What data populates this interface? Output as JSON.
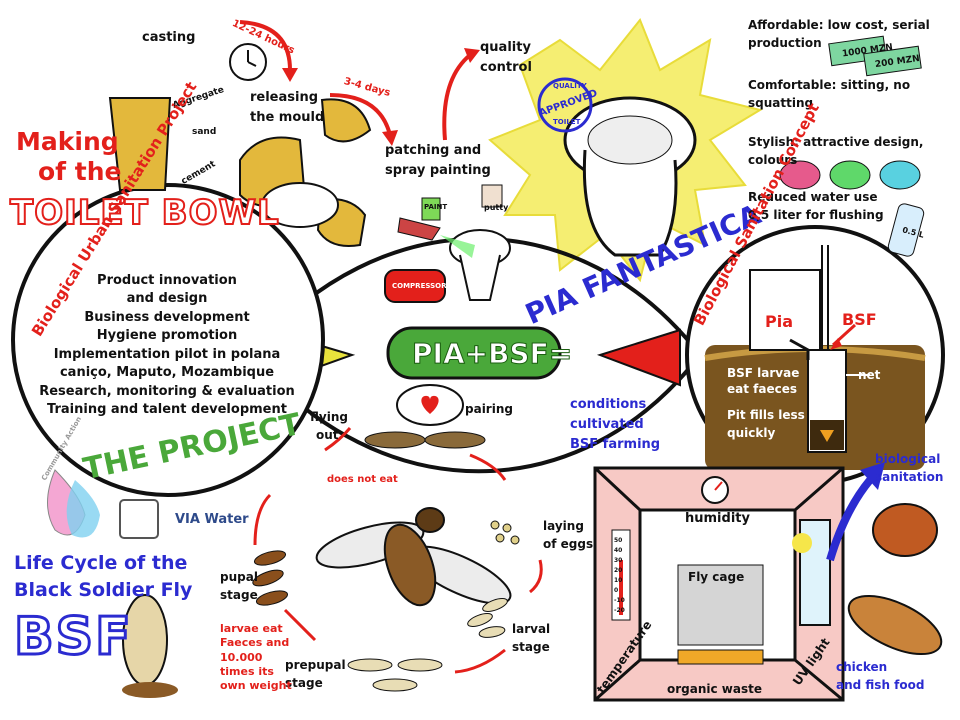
{
  "making": {
    "line1": "Making",
    "line2": "of the",
    "toilet_bowl": "TOILET BOWL"
  },
  "process": {
    "casting": "casting",
    "hours": "12-24 hours",
    "aggregate": "Aggregate",
    "sand": "sand",
    "cement": "cement",
    "releasing": "releasing",
    "the_mould": "the mould",
    "days": "3-4 days",
    "patching": "patching and",
    "spray": "spray painting",
    "paint": "PAINT",
    "putty": "putty",
    "compressor": "COMPRESSOR",
    "quality1": "quality",
    "quality2": "control",
    "stamp_top": "QUALITY",
    "stamp_mid": "APPROVED",
    "stamp_bottom": "TOILET"
  },
  "pia_fantastica": "PIA FANTASTICA",
  "benefits": {
    "affordable1": "Affordable: low cost, serial",
    "affordable2": "production",
    "price1": "1000 MZN",
    "price2": "200 MZN",
    "comfortable1": "Comfortable: sitting, no",
    "comfortable2": "squatting",
    "stylish1": "Stylish: attractive design,",
    "stylish2": "colours",
    "water1": "Reduced water use",
    "water2": "0,5 liter for flushing",
    "bottle": "0.5 L"
  },
  "project": {
    "arc_title": "Biological Urban Sanitation Project",
    "items": [
      "Product innovation",
      "and design",
      "Business development",
      "Hygiene promotion",
      "Implementation pilot in polana",
      "caniço, Maputo, Mozambique",
      "Research, monitoring & evaluation",
      "Training and talent development"
    ],
    "the_project": "THE PROJECT"
  },
  "center": {
    "banner": "PIA+BSF="
  },
  "concept": {
    "arc_title": "Biological Sanitation Concept",
    "pia": "Pia",
    "bsf": "BSF",
    "larvae1": "BSF larvae",
    "larvae2": "eat faeces",
    "net": "net",
    "pit1": "Pit fills less",
    "pit2": "quickly"
  },
  "farming": {
    "line1": "conditions",
    "line2": "cultivated",
    "line3": "BSF farming",
    "humidity": "humidity",
    "fly_cage": "Fly cage",
    "temperature": "temperature",
    "uv_light": "UV light",
    "organic_waste": "organic waste",
    "biological1": "biological",
    "biological2": "sanitation",
    "food1": "chicken",
    "food2": "and fish food",
    "thermo_ticks": [
      "50",
      "40",
      "30",
      "20",
      "10",
      "0",
      "-10",
      "-20"
    ]
  },
  "lifecycle": {
    "flying1": "flying",
    "flying2": "out",
    "pairing": "pairing",
    "does_not_eat": "does not eat",
    "laying1": "laying",
    "laying2": "of eggs",
    "larval1": "larval",
    "larval2": "stage",
    "prepupal1": "prepupal",
    "prepupal2": "stage",
    "pupal1": "pupal",
    "pupal2": "stage",
    "larvae_note": [
      "larvae eat",
      "Faeces and",
      "10.000",
      "times its",
      "own weight"
    ]
  },
  "footer": {
    "life_cycle1": "Life Cycle of the",
    "life_cycle2": "Black Soldier Fly",
    "bsf": "BSF",
    "logo_text": "VIA Water",
    "drop_text": "Community Action"
  },
  "colors": {
    "red": "#e3201b",
    "blue": "#2b2bd0",
    "green": "#4aa83a",
    "yellow": "#f5ee72",
    "brown": "#6b4a1c"
  }
}
